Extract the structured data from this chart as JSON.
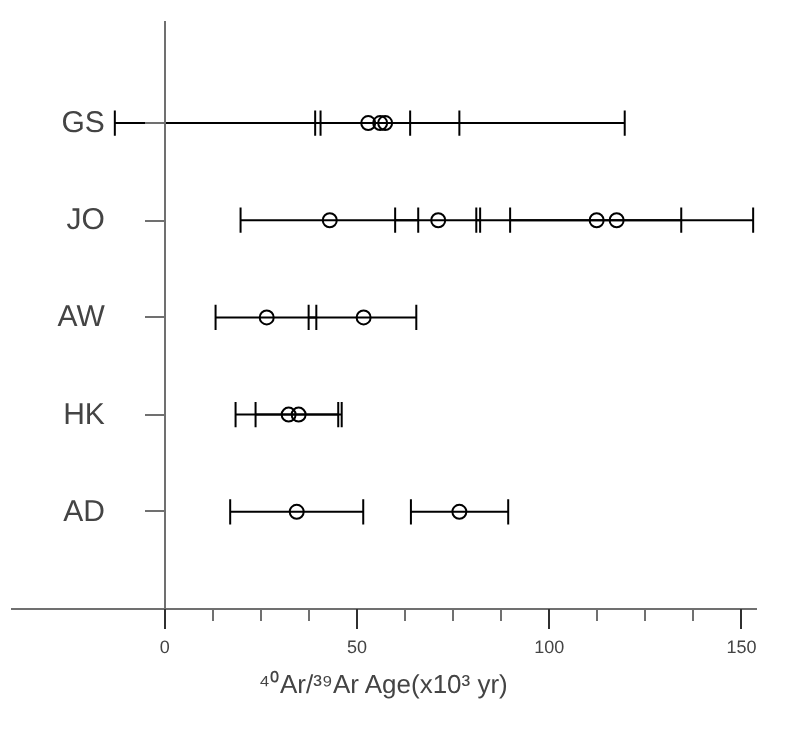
{
  "chart_data": {
    "type": "scatter",
    "orientation": "horizontal",
    "xlabel": "⁴⁰Ar/³⁹Ar Age(x10³ yr)",
    "categories": [
      "GS",
      "JO",
      "AW",
      "HK",
      "AD"
    ],
    "series": [
      {
        "color": "#000000",
        "values": [
          52.9,
          42.9,
          26.5,
          32.2,
          34.3
        ],
        "errors": [
          [
            39.1,
            63.8
          ],
          [
            19.7,
            65.9
          ],
          [
            13.2,
            39.4
          ],
          [
            18.4,
            45.1
          ],
          [
            17,
            51.6
          ]
        ]
      },
      {
        "color": "#000000",
        "values": [
          56,
          71.1,
          51.7,
          34.8,
          76.6
        ],
        "errors": [
          [
            -13,
            119.6
          ],
          [
            59.9,
            82
          ],
          [
            37.4,
            65.4
          ],
          [
            23.6,
            46
          ],
          [
            64,
            89.3
          ]
        ]
      },
      {
        "color": "#000000",
        "values": [
          57.3,
          112.3,
          null,
          null,
          null
        ],
        "errors": [
          [
            40.5,
            76.6
          ],
          [
            89.8,
            134.3
          ],
          null,
          null,
          null
        ]
      },
      {
        "color": "#000000",
        "values": [
          null,
          117.5,
          null,
          null,
          null
        ],
        "errors": [
          null,
          [
            81,
            153
          ],
          null,
          null,
          null
        ]
      }
    ],
    "xlim": [
      -40,
      154
    ],
    "xticks": [
      0,
      {
        "value": 12.5,
        "label": null
      },
      {
        "value": 25,
        "label": null
      },
      {
        "value": 37.5,
        "label": null
      },
      50,
      {
        "value": 62.5,
        "label": null
      },
      {
        "value": 75,
        "label": null
      },
      {
        "value": 87.5,
        "label": null
      },
      100,
      {
        "value": 112.5,
        "label": null
      },
      {
        "value": 125,
        "label": null
      },
      {
        "value": 137.5,
        "label": null
      },
      150
    ],
    "grid": false,
    "marker": "circle"
  }
}
